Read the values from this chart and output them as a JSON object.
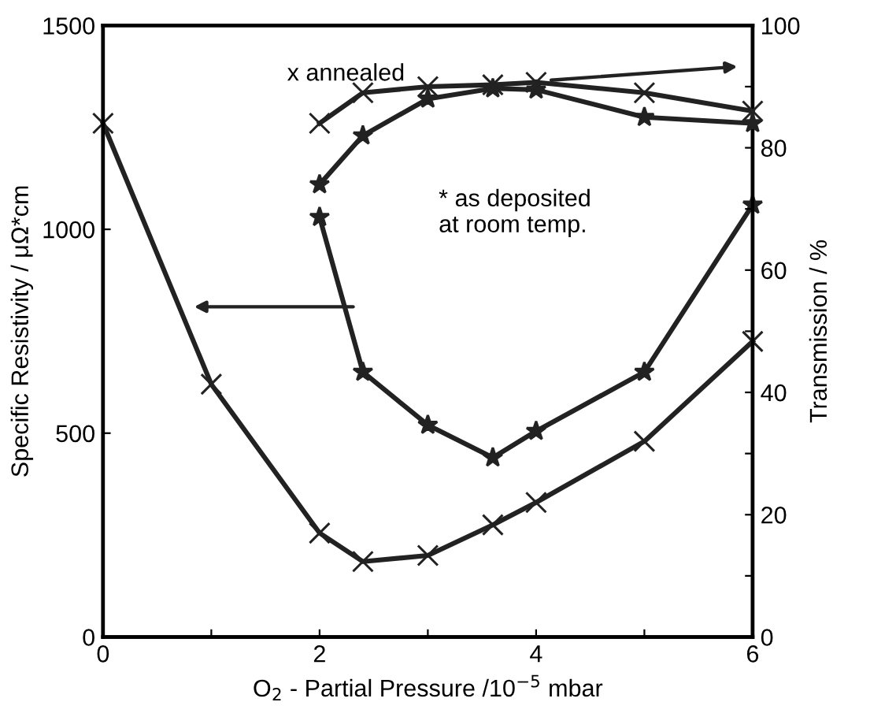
{
  "chart_data": {
    "type": "line",
    "xlabel": "O$_{2}$ - Partial Pressure /10$^{−5}$ mbar",
    "ylabel": "Specific Resistivity / μΩ*cm",
    "y2label": "Transmission / %",
    "xlim": [
      0,
      6
    ],
    "xticks": [
      0,
      {
        "value": 1,
        "label": null
      },
      2,
      {
        "value": 3,
        "label": null
      },
      4,
      {
        "value": 5,
        "label": null
      },
      6
    ],
    "ylim": [
      0,
      1500
    ],
    "yticks": [
      0,
      500,
      1000,
      1500
    ],
    "y2lim": [
      0,
      100
    ],
    "y2ticks": [
      0,
      {
        "value": 10,
        "label": null
      },
      20,
      {
        "value": 30,
        "label": null
      },
      40,
      {
        "value": 50,
        "label": null
      },
      60,
      {
        "value": 70,
        "label": null
      },
      80,
      {
        "value": 90,
        "label": null
      },
      100
    ],
    "grid": false,
    "legend": false,
    "line_style": "solid",
    "annotations": [
      "x annealed",
      "* as deposited\nat room temp."
    ],
    "series": [
      {
        "color": "#222222",
        "marker": "cross",
        "x": [
          0,
          1,
          2,
          2.4,
          3,
          3.6,
          4,
          5,
          6
        ],
        "values": [
          1260,
          620,
          255,
          185,
          200,
          275,
          330,
          480,
          725
        ]
      },
      {
        "color": "#222222",
        "marker": "star",
        "x": [
          2,
          2.4,
          3,
          3.6,
          4,
          5,
          6
        ],
        "values": [
          1030,
          650,
          520,
          440,
          505,
          650,
          1060
        ]
      },
      {
        "color": "#222222",
        "marker": "cross",
        "axis": "y2",
        "x": [
          2,
          2.4,
          3,
          3.6,
          4,
          5,
          6
        ],
        "values": [
          84,
          89,
          90,
          90.3,
          90.7,
          89,
          86
        ]
      },
      {
        "color": "#222222",
        "marker": "star",
        "axis": "y2",
        "x": [
          2,
          2.4,
          3,
          3.6,
          4,
          5,
          6
        ],
        "values": [
          74,
          82,
          88,
          89.7,
          89.5,
          85,
          84
        ]
      }
    ]
  }
}
